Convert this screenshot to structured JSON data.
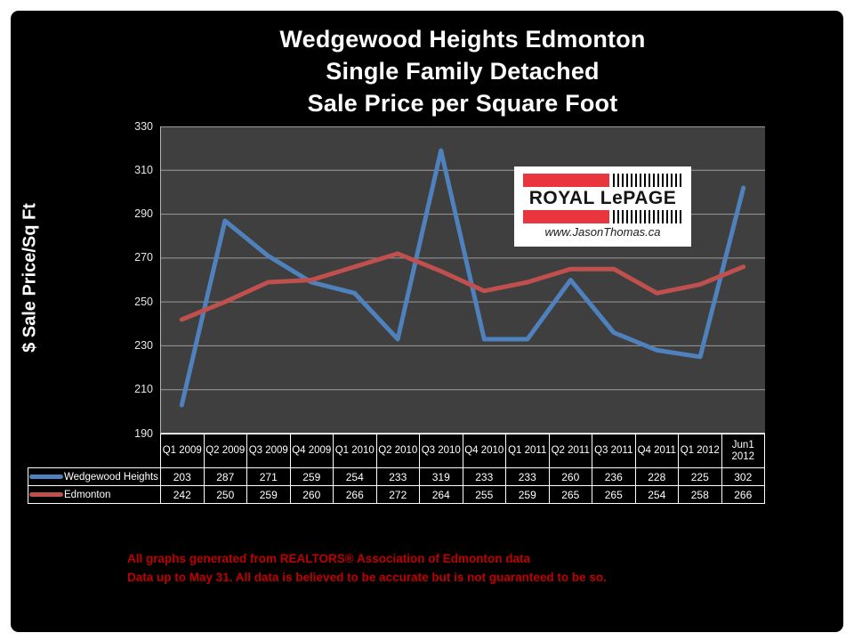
{
  "page": {
    "title_lines": [
      "Wedgewood Heights Edmonton",
      "Single Family Detached",
      "Sale Price per Square Foot"
    ],
    "y_axis_title": "$ Sale Price/Sq Ft",
    "footer_lines": [
      "All graphs generated from REALTORS® Association of Edmonton data",
      "Data up to May 31.  All data is believed to be accurate but is not guaranteed to be so."
    ],
    "footer_color": "#C00000"
  },
  "logo": {
    "brand": "ROYAL LePAGE",
    "website": "www.JasonThomas.ca",
    "red": "#E8353E"
  },
  "chart_data": {
    "type": "line",
    "title": "Wedgewood Heights Edmonton Single Family Detached Sale Price per Square Foot",
    "xlabel": "",
    "ylabel": "$ Sale Price/Sq Ft",
    "ylim": [
      190,
      330
    ],
    "y_ticks": [
      330,
      310,
      290,
      270,
      250,
      230,
      210,
      190
    ],
    "grid": "horizontal",
    "plot_bg": "#3F3F3F",
    "gridline_color": "#9b9b9b",
    "legend_position": "table-left",
    "categories": [
      "Q1 2009",
      "Q2 2009",
      "Q3 2009",
      "Q4 2009",
      "Q1 2010",
      "Q2 2010",
      "Q3 2010",
      "Q4 2010",
      "Q1 2011",
      "Q2 2011",
      "Q3 2011",
      "Q4 2011",
      "Q1 2012",
      "Jun1 2012"
    ],
    "series": [
      {
        "name": "Wedgewood Heights",
        "color": "#4F81BD",
        "values": [
          203,
          287,
          271,
          259,
          254,
          233,
          319,
          233,
          233,
          260,
          236,
          228,
          225,
          302
        ]
      },
      {
        "name": "Edmonton",
        "color": "#C0504D",
        "values": [
          242,
          250,
          259,
          260,
          266,
          272,
          264,
          255,
          259,
          265,
          265,
          254,
          258,
          266
        ]
      }
    ]
  }
}
